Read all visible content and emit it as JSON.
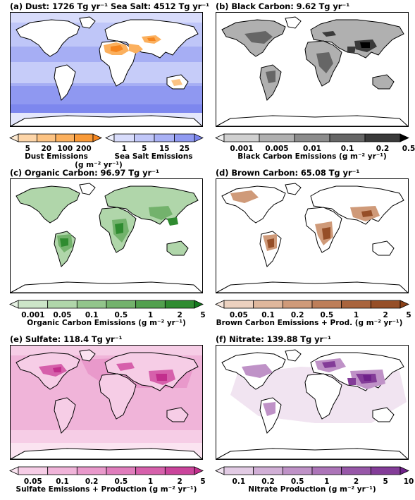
{
  "panels": [
    {
      "id": "a",
      "title": "(a) Dust: 1726 Tg yr⁻¹ Sea Salt: 4512 Tg yr⁻¹",
      "colorbars": [
        {
          "ticks": [
            "5",
            "20",
            "100",
            "200"
          ],
          "label": "Dust Emissions",
          "colors": [
            "#fde9d0",
            "#fdd5a8",
            "#fcc383",
            "#fbb05e",
            "#f99a38",
            "#f5851f"
          ]
        },
        {
          "ticks": [
            "1",
            "5",
            "15",
            "25"
          ],
          "label": "Sea Salt Emissions",
          "colors": [
            "#eef0fd",
            "#d8dcfb",
            "#c1c7f8",
            "#a9b1f5",
            "#909af1",
            "#7a84ed"
          ]
        }
      ],
      "units": "(g m⁻² yr⁻¹)"
    },
    {
      "id": "b",
      "title": "(b) Black Carbon: 9.62 Tg yr⁻¹",
      "colorbars": [
        {
          "ticks": [
            "0.001",
            "0.005",
            "0.01",
            "0.1",
            "0.2",
            "0.5"
          ],
          "label": "Black Carbon Emissions (g m⁻² yr⁻¹)",
          "colors": [
            "#f0f0f0",
            "#d0d0d0",
            "#b0b0b0",
            "#8c8c8c",
            "#666666",
            "#3a3a3a",
            "#000000"
          ]
        }
      ]
    },
    {
      "id": "c",
      "title": "(c) Organic Carbon: 96.97 Tg yr⁻¹",
      "colorbars": [
        {
          "ticks": [
            "0.001",
            "0.05",
            "0.1",
            "0.5",
            "1",
            "2",
            "5"
          ],
          "label": "Organic Carbon Emissions (g m⁻² yr⁻¹)",
          "colors": [
            "#e6f2e4",
            "#cce5c8",
            "#b0d6aa",
            "#92c58b",
            "#73b26c",
            "#52a04e",
            "#2f8b30",
            "#127a1d"
          ]
        }
      ]
    },
    {
      "id": "d",
      "title": "(d) Brown Carbon: 65.08 Tg yr⁻¹",
      "colorbars": [
        {
          "ticks": [
            "0.05",
            "0.1",
            "0.2",
            "0.5",
            "1",
            "2",
            "5"
          ],
          "label": "Brown Carbon Emissions + Prod. (g m⁻² yr⁻¹)",
          "colors": [
            "#f7e8df",
            "#ecd1bf",
            "#dfb79c",
            "#cf9a79",
            "#bd7e59",
            "#a9643d",
            "#964f28",
            "#8a4018"
          ]
        }
      ]
    },
    {
      "id": "e",
      "title": "(e) Sulfate: 118.4 Tg yr⁻¹",
      "colorbars": [
        {
          "ticks": [
            "0.05",
            "0.1",
            "0.2",
            "0.5",
            "1",
            "2",
            "5"
          ],
          "label": "Sulfate Emissions + Production (g m⁻² yr⁻¹)",
          "colors": [
            "#fbe4f1",
            "#f6cde6",
            "#f0b4d9",
            "#e999cb",
            "#e07dbc",
            "#d660ab",
            "#ca449b",
            "#c22f8d"
          ]
        }
      ]
    },
    {
      "id": "f",
      "title": "(f) Nitrate: 139.88 Tg yr⁻¹",
      "colorbars": [
        {
          "ticks": [
            "0.1",
            "0.2",
            "0.5",
            "1",
            "2",
            "5",
            "10"
          ],
          "label": "Nitrate Production (g m⁻² yr⁻¹)",
          "colors": [
            "#f1e4f1",
            "#e2cbe4",
            "#d1afd6",
            "#bf92c7",
            "#ac74b8",
            "#9757a8",
            "#833c98",
            "#6f218a"
          ]
        }
      ]
    }
  ]
}
